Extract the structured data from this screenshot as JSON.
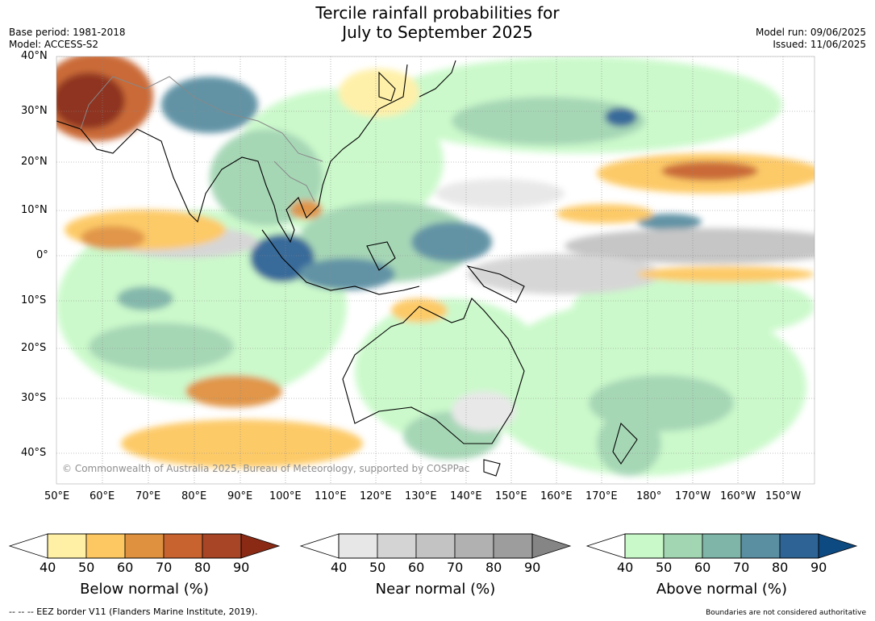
{
  "title_line1": "Tercile rainfall probabilities for",
  "title_line2": "July to September 2025",
  "base_period": "Base period: 1981-2018",
  "model": "Model: ACCESS-S2",
  "model_run": "Model run: 09/06/2025",
  "issued": "Issued: 11/06/2025",
  "copyright": "© Commonwealth of Australia 2025, Bureau of Meteorology, supported by COSPPac",
  "latitudes": [
    "40°N",
    "30°N",
    "20°N",
    "10°N",
    "0°",
    "10°S",
    "20°S",
    "30°S",
    "40°S"
  ],
  "longitudes": [
    "50°E",
    "60°E",
    "70°E",
    "80°E",
    "90°E",
    "100°E",
    "110°E",
    "120°E",
    "130°E",
    "140°E",
    "150°E",
    "160°E",
    "170°E",
    "180°",
    "170°W",
    "160°W",
    "150°W"
  ],
  "colorbars": {
    "below": {
      "label": "Below normal (%)",
      "ticks": [
        "40",
        "50",
        "60",
        "70",
        "80",
        "90"
      ],
      "colors": [
        "#fff0a5",
        "#fdc861",
        "#e0913f",
        "#c8632f",
        "#a84526",
        "#8a2a15"
      ]
    },
    "near": {
      "label": "Near normal (%)",
      "ticks": [
        "40",
        "50",
        "60",
        "70",
        "80",
        "90"
      ],
      "colors": [
        "#e7e7e7",
        "#d4d4d4",
        "#c3c3c3",
        "#b1b1b1",
        "#9d9d9d",
        "#858585"
      ]
    },
    "above": {
      "label": "Above normal (%)",
      "ticks": [
        "40",
        "50",
        "60",
        "70",
        "80",
        "90"
      ],
      "colors": [
        "#c9f9c9",
        "#a2d5b2",
        "#7fb5a8",
        "#5a8ea1",
        "#2e6495",
        "#0d4a82"
      ]
    }
  },
  "footer_left": "--  --  -- EEZ border V11 (Flanders Marine Institute, 2019).",
  "footer_right": "Boundaries are not considered authoritative"
}
